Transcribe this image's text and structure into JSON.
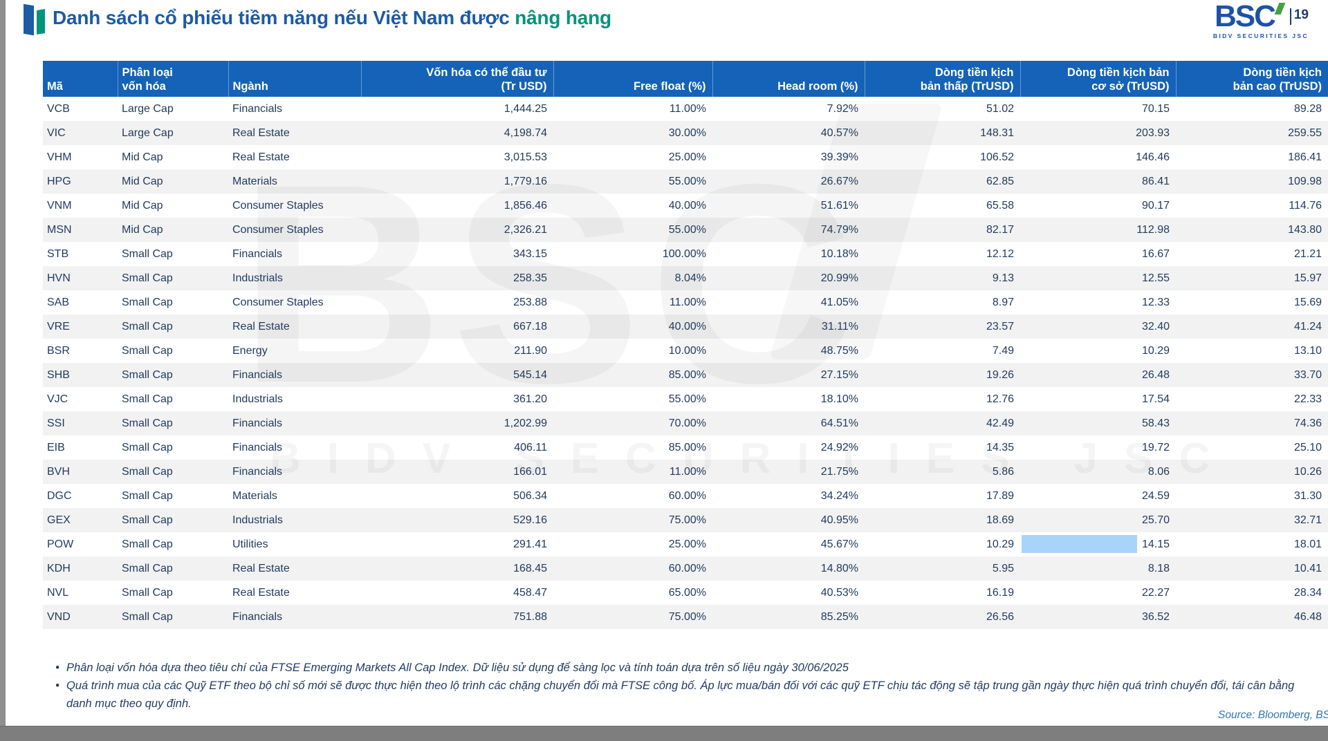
{
  "header": {
    "title_main": "Danh sách cổ phiếu tiềm năng nếu Việt Nam được ",
    "title_accent": "nâng hạng",
    "logo_text": "BSC",
    "page_number": "19",
    "logo_subtext": "BIDV SECURITIES JSC"
  },
  "colors": {
    "header_blue": "#1563b8",
    "title_blue": "#1c5ba6",
    "title_teal": "#00947c",
    "body_navy": "#1f3a5f",
    "zebra_gray": "#f2f2f2",
    "selection_highlight": "#a9d4fa",
    "logo_green": "#45a041",
    "source_blue": "#2e74b5"
  },
  "table": {
    "columns": [
      {
        "key": "ma",
        "label": "Mã"
      },
      {
        "key": "phan_loai_von_hoa",
        "label": "Phân loại\nvốn hóa"
      },
      {
        "key": "nganh",
        "label": "Ngành"
      },
      {
        "key": "von_hoa_co_the_dau_tu",
        "label": "Vốn hóa có thể đầu tư\n(Tr USD)"
      },
      {
        "key": "free_float",
        "label": "Free float (%)"
      },
      {
        "key": "head_room",
        "label": "Head room (%)"
      },
      {
        "key": "dong_tien_kich_ban_thap",
        "label": "Dòng tiền kịch\nbản thấp (TrUSD)"
      },
      {
        "key": "dong_tien_kich_ban_co_so",
        "label": "Dòng tiền kịch bản\ncơ sở (TrUSD)"
      },
      {
        "key": "dong_tien_kich_ban_cao",
        "label": "Dòng tiền kịch\nbản cao (TrUSD)"
      }
    ],
    "rows": [
      [
        "VCB",
        "Large Cap",
        "Financials",
        "1,444.25",
        "11.00%",
        "7.92%",
        "51.02",
        "70.15",
        "89.28"
      ],
      [
        "VIC",
        "Large Cap",
        "Real Estate",
        "4,198.74",
        "30.00%",
        "40.57%",
        "148.31",
        "203.93",
        "259.55"
      ],
      [
        "VHM",
        "Mid Cap",
        "Real Estate",
        "3,015.53",
        "25.00%",
        "39.39%",
        "106.52",
        "146.46",
        "186.41"
      ],
      [
        "HPG",
        "Mid Cap",
        "Materials",
        "1,779.16",
        "55.00%",
        "26.67%",
        "62.85",
        "86.41",
        "109.98"
      ],
      [
        "VNM",
        "Mid Cap",
        "Consumer Staples",
        "1,856.46",
        "40.00%",
        "51.61%",
        "65.58",
        "90.17",
        "114.76"
      ],
      [
        "MSN",
        "Mid Cap",
        "Consumer Staples",
        "2,326.21",
        "55.00%",
        "74.79%",
        "82.17",
        "112.98",
        "143.80"
      ],
      [
        "STB",
        "Small Cap",
        "Financials",
        "343.15",
        "100.00%",
        "10.18%",
        "12.12",
        "16.67",
        "21.21"
      ],
      [
        "HVN",
        "Small Cap",
        "Industrials",
        "258.35",
        "8.04%",
        "20.99%",
        "9.13",
        "12.55",
        "15.97"
      ],
      [
        "SAB",
        "Small Cap",
        "Consumer Staples",
        "253.88",
        "11.00%",
        "41.05%",
        "8.97",
        "12.33",
        "15.69"
      ],
      [
        "VRE",
        "Small Cap",
        "Real Estate",
        "667.18",
        "40.00%",
        "31.11%",
        "23.57",
        "32.40",
        "41.24"
      ],
      [
        "BSR",
        "Small Cap",
        "Energy",
        "211.90",
        "10.00%",
        "48.75%",
        "7.49",
        "10.29",
        "13.10"
      ],
      [
        "SHB",
        "Small Cap",
        "Financials",
        "545.14",
        "85.00%",
        "27.15%",
        "19.26",
        "26.48",
        "33.70"
      ],
      [
        "VJC",
        "Small Cap",
        "Industrials",
        "361.20",
        "55.00%",
        "18.10%",
        "12.76",
        "17.54",
        "22.33"
      ],
      [
        "SSI",
        "Small Cap",
        "Financials",
        "1,202.99",
        "70.00%",
        "64.51%",
        "42.49",
        "58.43",
        "74.36"
      ],
      [
        "EIB",
        "Small Cap",
        "Financials",
        "406.11",
        "85.00%",
        "24.92%",
        "14.35",
        "19.72",
        "25.10"
      ],
      [
        "BVH",
        "Small Cap",
        "Financials",
        "166.01",
        "11.00%",
        "21.75%",
        "5.86",
        "8.06",
        "10.26"
      ],
      [
        "DGC",
        "Small Cap",
        "Materials",
        "506.34",
        "60.00%",
        "34.24%",
        "17.89",
        "24.59",
        "31.30"
      ],
      [
        "GEX",
        "Small Cap",
        "Industrials",
        "529.16",
        "75.00%",
        "40.95%",
        "18.69",
        "25.70",
        "32.71"
      ],
      [
        "POW",
        "Small Cap",
        "Utilities",
        "291.41",
        "25.00%",
        "45.67%",
        "10.29",
        "14.15",
        "18.01"
      ],
      [
        "KDH",
        "Small Cap",
        "Real Estate",
        "168.45",
        "60.00%",
        "14.80%",
        "5.95",
        "8.18",
        "10.41"
      ],
      [
        "NVL",
        "Small Cap",
        "Real Estate",
        "458.47",
        "65.00%",
        "40.53%",
        "16.19",
        "22.27",
        "28.34"
      ],
      [
        "VND",
        "Small Cap",
        "Financials",
        "751.88",
        "75.00%",
        "85.25%",
        "26.56",
        "36.52",
        "46.48"
      ]
    ],
    "selection_highlight_cell": {
      "row_index": 18,
      "col_index": 7
    }
  },
  "footnotes": [
    "Phân loại vốn hóa dựa theo tiêu chí của FTSE Emerging Markets All Cap Index. Dữ liệu sử dụng để sàng lọc và tính toán dựa trên số liệu ngày 30/06/2025",
    "Quá trình mua của các Quỹ ETF theo bộ chỉ số mới sẽ được thực hiện theo lộ trình các chặng chuyển đổi mà FTSE công bố. Áp lực mua/bán đối với các quỹ ETF chịu tác động sẽ tập trung gần ngày thực hiện quá trình chuyển đổi, tái cân bằng danh mục theo quy định."
  ],
  "source_label": "Source: Bloomberg, BS",
  "watermark": {
    "big_text": "BSC",
    "sub_text": "BIDV SECURITIES JSC"
  }
}
